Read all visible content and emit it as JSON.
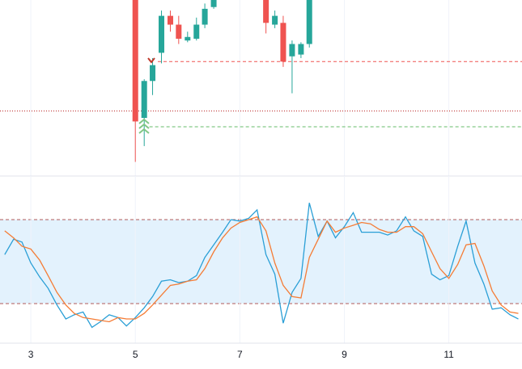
{
  "chart_data": [
    {
      "type": "candlestick",
      "x": [
        5,
        5.17,
        5.33,
        5.5,
        5.67,
        5.83,
        6,
        6.17,
        6.33,
        6.5,
        7.5,
        7.67,
        7.83,
        8,
        8.17,
        8.33
      ],
      "open": [
        100,
        33,
        54,
        70,
        91,
        86,
        77,
        78,
        86,
        96,
        100,
        86,
        87,
        68,
        69,
        75
      ],
      "close": [
        31,
        54,
        63,
        91,
        86,
        78,
        79,
        86,
        95,
        100,
        87,
        91,
        65,
        75,
        75,
        100
      ],
      "high": [
        100,
        55,
        67,
        94,
        94,
        91,
        82,
        90,
        98,
        100,
        100,
        94,
        91,
        77,
        76,
        100
      ],
      "low": [
        8,
        17,
        46,
        64,
        82,
        75,
        76,
        77,
        84,
        95,
        81,
        84,
        62,
        47,
        67,
        73
      ],
      "up_color": "#26a69a",
      "down_color": "#ef5350",
      "xlim": [
        2.41,
        12.4
      ],
      "ylim": [
        0,
        100
      ],
      "levels": [
        {
          "value": 65,
          "color": "#ef5350",
          "style": "dashed",
          "from": 5.43
        },
        {
          "value": 28,
          "color": "#66bb6a",
          "style": "dashed",
          "from": 5.27
        },
        {
          "value": 37,
          "color": "#b71c1c",
          "style": "dotted",
          "from": 2.41
        }
      ]
    },
    {
      "type": "line",
      "x": [
        2.5,
        2.67,
        2.83,
        3,
        3.17,
        3.33,
        3.5,
        3.67,
        3.83,
        4,
        4.17,
        4.33,
        4.5,
        4.67,
        4.83,
        5,
        5.17,
        5.33,
        5.5,
        5.67,
        5.83,
        6,
        6.17,
        6.33,
        6.5,
        6.67,
        6.83,
        7,
        7.17,
        7.33,
        7.5,
        7.67,
        7.83,
        8,
        8.17,
        8.33,
        8.5,
        8.67,
        8.83,
        9,
        9.17,
        9.33,
        9.5,
        9.67,
        9.83,
        10,
        10.17,
        10.33,
        10.5,
        10.67,
        10.83,
        11,
        11.17,
        11.33,
        11.5,
        11.67,
        11.83,
        12,
        12.17,
        12.33
      ],
      "series": [
        {
          "color": "#2a9fd6",
          "values": [
            55,
            66,
            64,
            49,
            39,
            31,
            19,
            9,
            12,
            14,
            3,
            7,
            12,
            10,
            4,
            10,
            17,
            25,
            36,
            37,
            35,
            36,
            40,
            53,
            62,
            71,
            80,
            79,
            81,
            87,
            55,
            41,
            6,
            28,
            38,
            92,
            68,
            79,
            67,
            75,
            85,
            71,
            71,
            71,
            69,
            72,
            82,
            72,
            68,
            41,
            37,
            40,
            61,
            79,
            49,
            34,
            16,
            17,
            12,
            9
          ]
        },
        {
          "color": "#f57c35",
          "values": [
            72,
            67,
            61,
            59,
            51,
            40,
            28,
            19,
            13,
            10,
            9,
            8,
            7,
            10,
            9,
            9,
            13,
            19,
            26,
            33,
            34,
            36,
            37,
            45,
            57,
            67,
            74,
            78,
            80,
            82,
            72,
            49,
            33,
            25,
            24,
            53,
            66,
            79,
            71,
            74,
            76,
            78,
            77,
            73,
            71,
            71,
            75,
            75,
            70,
            57,
            45,
            38,
            48,
            62,
            63,
            47,
            29,
            19,
            14,
            13
          ]
        }
      ],
      "bands": [
        20,
        80
      ],
      "band_color": "#e3f2fd",
      "band_line_color": "#b05a5a",
      "xlim": [
        2.41,
        12.4
      ],
      "ylim": [
        -8.3,
        111.2
      ],
      "xticks": [
        3,
        5,
        7,
        9,
        11
      ]
    }
  ]
}
